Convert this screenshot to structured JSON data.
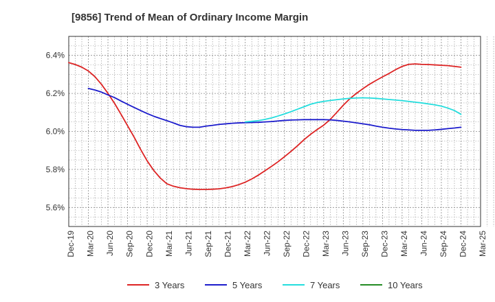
{
  "chart_data": {
    "type": "line",
    "title": "[9856]  Trend of Mean of Ordinary Income Margin",
    "xlabel": "",
    "ylabel": "",
    "x_ticks": [
      "Dec-19",
      "Mar-20",
      "Jun-20",
      "Sep-20",
      "Dec-20",
      "Mar-21",
      "Jun-21",
      "Sep-21",
      "Dec-21",
      "Mar-22",
      "Jun-22",
      "Sep-22",
      "Dec-22",
      "Mar-23",
      "Jun-23",
      "Sep-23",
      "Dec-23",
      "Mar-24",
      "Jun-24",
      "Sep-24",
      "Dec-24",
      "Mar-25"
    ],
    "y_ticks": [
      {
        "value": 5.6,
        "label": "5.6%"
      },
      {
        "value": 5.8,
        "label": "5.8%"
      },
      {
        "value": 6.0,
        "label": "6.0%"
      },
      {
        "value": 6.2,
        "label": "6.2%"
      },
      {
        "value": 6.4,
        "label": "6.4%"
      }
    ],
    "ylim": [
      5.5,
      6.5
    ],
    "grid": true,
    "legend_position": "bottom",
    "series": [
      {
        "name": "3 Years",
        "color": "#dd2222",
        "x": [
          "Dec-19",
          "Jan-20",
          "Feb-20",
          "Mar-20",
          "Apr-20",
          "May-20",
          "Jun-20",
          "Jul-20",
          "Aug-20",
          "Sep-20",
          "Oct-20",
          "Nov-20",
          "Dec-20",
          "Jan-21",
          "Feb-21",
          "Mar-21",
          "Apr-21",
          "May-21",
          "Jun-21",
          "Jul-21",
          "Aug-21",
          "Sep-21",
          "Oct-21",
          "Nov-21",
          "Dec-21",
          "Jan-22",
          "Feb-22",
          "Mar-22",
          "Apr-22",
          "May-22",
          "Jun-22",
          "Jul-22",
          "Aug-22",
          "Sep-22",
          "Oct-22",
          "Nov-22",
          "Dec-22",
          "Jan-23",
          "Feb-23",
          "Mar-23",
          "Apr-23",
          "May-23",
          "Jun-23",
          "Jul-23",
          "Aug-23",
          "Sep-23",
          "Oct-23",
          "Nov-23",
          "Dec-23",
          "Jan-24",
          "Feb-24",
          "Mar-24",
          "Apr-24",
          "May-24",
          "Jun-24",
          "Jul-24",
          "Aug-24",
          "Sep-24",
          "Oct-24",
          "Nov-24",
          "Dec-24"
        ],
        "values": [
          6.362,
          6.352,
          6.338,
          6.318,
          6.288,
          6.248,
          6.2,
          6.148,
          6.09,
          6.03,
          5.97,
          5.905,
          5.845,
          5.795,
          5.755,
          5.725,
          5.712,
          5.704,
          5.699,
          5.696,
          5.695,
          5.695,
          5.696,
          5.698,
          5.703,
          5.71,
          5.72,
          5.733,
          5.75,
          5.77,
          5.793,
          5.816,
          5.84,
          5.867,
          5.895,
          5.925,
          5.957,
          5.985,
          6.01,
          6.033,
          6.063,
          6.1,
          6.138,
          6.172,
          6.2,
          6.225,
          6.248,
          6.268,
          6.287,
          6.305,
          6.325,
          6.342,
          6.353,
          6.355,
          6.353,
          6.352,
          6.35,
          6.348,
          6.346,
          6.342,
          6.338
        ]
      },
      {
        "name": "5 Years",
        "color": "#1a1acc",
        "x": [
          "Dec-19",
          "Jan-20",
          "Feb-20",
          "Mar-20",
          "Apr-20",
          "May-20",
          "Jun-20",
          "Jul-20",
          "Aug-20",
          "Sep-20",
          "Oct-20",
          "Nov-20",
          "Dec-20",
          "Jan-21",
          "Feb-21",
          "Mar-21",
          "Apr-21",
          "May-21",
          "Jun-21",
          "Jul-21",
          "Aug-21",
          "Sep-21",
          "Oct-21",
          "Nov-21",
          "Dec-21",
          "Jan-22",
          "Feb-22",
          "Mar-22",
          "Apr-22",
          "May-22",
          "Jun-22",
          "Jul-22",
          "Aug-22",
          "Sep-22",
          "Oct-22",
          "Nov-22",
          "Dec-22",
          "Jan-23",
          "Feb-23",
          "Mar-23",
          "Apr-23",
          "May-23",
          "Jun-23",
          "Jul-23",
          "Aug-23",
          "Sep-23",
          "Oct-23",
          "Nov-23",
          "Dec-23",
          "Jan-24",
          "Feb-24",
          "Mar-24",
          "Apr-24",
          "May-24",
          "Jun-24",
          "Jul-24",
          "Aug-24",
          "Sep-24",
          "Oct-24",
          "Nov-24",
          "Dec-24"
        ],
        "values": [
          null,
          null,
          null,
          6.226,
          6.218,
          6.207,
          6.192,
          6.178,
          6.16,
          6.143,
          6.126,
          6.11,
          6.094,
          6.08,
          6.068,
          6.057,
          6.045,
          6.032,
          6.025,
          6.022,
          6.022,
          6.028,
          6.032,
          6.037,
          6.04,
          6.043,
          6.045,
          6.046,
          6.047,
          6.048,
          6.05,
          6.052,
          6.055,
          6.058,
          6.06,
          6.061,
          6.062,
          6.062,
          6.062,
          6.062,
          6.061,
          6.058,
          6.054,
          6.05,
          6.045,
          6.04,
          6.035,
          6.028,
          6.022,
          6.017,
          6.013,
          6.01,
          6.008,
          6.006,
          6.006,
          6.006,
          6.008,
          6.011,
          6.015,
          6.018,
          6.022
        ]
      },
      {
        "name": "7 Years",
        "color": "#22dddd",
        "x": [
          "Mar-22",
          "Apr-22",
          "May-22",
          "Jun-22",
          "Jul-22",
          "Aug-22",
          "Sep-22",
          "Oct-22",
          "Nov-22",
          "Dec-22",
          "Jan-23",
          "Feb-23",
          "Mar-23",
          "Apr-23",
          "May-23",
          "Jun-23",
          "Jul-23",
          "Aug-23",
          "Sep-23",
          "Oct-23",
          "Nov-23",
          "Dec-23",
          "Jan-24",
          "Feb-24",
          "Mar-24",
          "Apr-24",
          "May-24",
          "Jun-24",
          "Jul-24",
          "Aug-24",
          "Sep-24",
          "Oct-24",
          "Nov-24",
          "Dec-24"
        ],
        "values": [
          6.05,
          6.053,
          6.057,
          6.063,
          6.071,
          6.081,
          6.092,
          6.104,
          6.117,
          6.13,
          6.143,
          6.152,
          6.158,
          6.163,
          6.167,
          6.171,
          6.174,
          6.176,
          6.177,
          6.176,
          6.174,
          6.171,
          6.168,
          6.165,
          6.162,
          6.158,
          6.154,
          6.15,
          6.145,
          6.14,
          6.133,
          6.123,
          6.11,
          6.09
        ]
      },
      {
        "name": "10 Years",
        "color": "#228b22",
        "x": [],
        "values": []
      }
    ]
  }
}
